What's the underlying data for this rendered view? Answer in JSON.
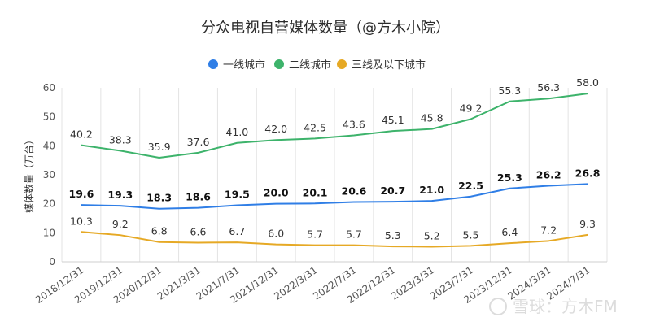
{
  "chart_data": {
    "type": "line",
    "title": "分众电视自营媒体数量（@方木小院）",
    "ylabel": "媒体数量（万台）",
    "xlabel": "",
    "ylim": [
      0,
      60
    ],
    "yticks": [
      0,
      10,
      20,
      30,
      40,
      50,
      60
    ],
    "grid": "vertical",
    "legend_position": "top-center",
    "categories": [
      "2018/12/31",
      "2019/12/31",
      "2020/12/31",
      "2021/3/31",
      "2021/7/31",
      "2021/12/31",
      "2022/3/31",
      "2022/7/31",
      "2022/12/31",
      "2023/3/31",
      "2023/7/31",
      "2023/12/31",
      "2024/3/31",
      "2024/7/31"
    ],
    "series": [
      {
        "name": "一线城市",
        "color": "#2f7ee6",
        "bold_labels": true,
        "values": [
          19.6,
          19.3,
          18.3,
          18.6,
          19.5,
          20.0,
          20.1,
          20.6,
          20.7,
          21.0,
          22.5,
          25.3,
          26.2,
          26.8
        ],
        "labels": [
          "19.6",
          "19.3",
          "18.3",
          "18.6",
          "19.5",
          "20.0",
          "20.1",
          "20.6",
          "20.7",
          "21.0",
          "22.5",
          "25.3",
          "26.2",
          "26.8"
        ]
      },
      {
        "name": "二线城市",
        "color": "#3db36b",
        "bold_labels": false,
        "values": [
          40.2,
          38.3,
          35.9,
          37.6,
          41.0,
          42.0,
          42.5,
          43.6,
          45.1,
          45.8,
          49.2,
          55.3,
          56.3,
          58.0
        ],
        "labels": [
          "40.2",
          "38.3",
          "35.9",
          "37.6",
          "41.0",
          "42.0",
          "42.5",
          "43.6",
          "45.1",
          "45.8",
          "49.2",
          "55.3",
          "56.3",
          "58.0"
        ]
      },
      {
        "name": "三线及以下城市",
        "color": "#e6a925",
        "bold_labels": false,
        "values": [
          10.3,
          9.2,
          6.8,
          6.6,
          6.7,
          6.0,
          5.7,
          5.7,
          5.3,
          5.2,
          5.5,
          6.4,
          7.2,
          9.3
        ],
        "labels": [
          "10.3",
          "9.2",
          "6.8",
          "6.6",
          "6.7",
          "6.0",
          "5.7",
          "5.7",
          "5.3",
          "5.2",
          "5.5",
          "6.4",
          "7.2",
          "9.3"
        ]
      }
    ]
  },
  "watermark": "雪球：方木FM"
}
